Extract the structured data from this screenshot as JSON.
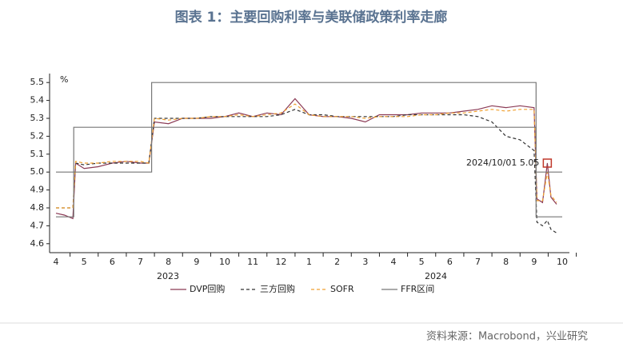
{
  "chart_data": {
    "type": "line",
    "title": "图表 1：主要回购利率与美联储政策利率走廊",
    "y_unit": "%",
    "source": "资料来源：Macrobond，兴业研究",
    "year_labels": [
      "2023",
      "2024"
    ],
    "xlim": [
      0,
      18
    ],
    "ylim": [
      4.55,
      5.55
    ],
    "grid": false,
    "xticks": [
      {
        "value": 0,
        "label": "4"
      },
      {
        "value": 1,
        "label": "5"
      },
      {
        "value": 2,
        "label": "6"
      },
      {
        "value": 3,
        "label": "7"
      },
      {
        "value": 4,
        "label": "8"
      },
      {
        "value": 5,
        "label": "9"
      },
      {
        "value": 6,
        "label": "10"
      },
      {
        "value": 7,
        "label": "11"
      },
      {
        "value": 8,
        "label": "12"
      },
      {
        "value": 9,
        "label": "1"
      },
      {
        "value": 10,
        "label": "2"
      },
      {
        "value": 11,
        "label": "3"
      },
      {
        "value": 12,
        "label": "4"
      },
      {
        "value": 13,
        "label": "5"
      },
      {
        "value": 14,
        "label": "6"
      },
      {
        "value": 15,
        "label": "7"
      },
      {
        "value": 16,
        "label": "8"
      },
      {
        "value": 17,
        "label": "9"
      },
      {
        "value": 18,
        "label": "10"
      }
    ],
    "yticks": [
      4.6,
      4.7,
      4.8,
      4.9,
      {
        "value": 5,
        "label": "5.0"
      },
      5.1,
      5.2,
      5.3,
      5.4,
      5.5
    ],
    "x": [
      0,
      0.3,
      0.6,
      0.7,
      1,
      1.5,
      2,
      2.5,
      3,
      3.3,
      3.5,
      4,
      4.5,
      5,
      5.5,
      6,
      6.5,
      7,
      7.5,
      8,
      8.5,
      9,
      9.5,
      10,
      10.5,
      11,
      11.5,
      12,
      12.5,
      13,
      13.5,
      14,
      14.5,
      15,
      15.5,
      16,
      16.5,
      17,
      17.1,
      17.3,
      17.47,
      17.6,
      17.8
    ],
    "series": [
      {
        "name": "DVP回购",
        "color": "#8b3a55",
        "dash": false,
        "values": [
          4.77,
          4.76,
          4.74,
          5.05,
          5.02,
          5.03,
          5.05,
          5.06,
          5.05,
          5.05,
          5.28,
          5.27,
          5.3,
          5.3,
          5.3,
          5.31,
          5.33,
          5.31,
          5.33,
          5.32,
          5.41,
          5.32,
          5.31,
          5.31,
          5.3,
          5.28,
          5.32,
          5.32,
          5.32,
          5.33,
          5.33,
          5.33,
          5.34,
          5.35,
          5.37,
          5.36,
          5.37,
          5.36,
          4.85,
          4.83,
          5.05,
          4.86,
          4.82
        ]
      },
      {
        "name": "三方回购",
        "color": "#333333",
        "dash": true,
        "values": [
          4.8,
          4.8,
          4.8,
          5.05,
          5.04,
          5.05,
          5.05,
          5.05,
          5.05,
          5.05,
          5.3,
          5.3,
          5.3,
          5.3,
          5.31,
          5.31,
          5.31,
          5.31,
          5.31,
          5.32,
          5.35,
          5.32,
          5.32,
          5.31,
          5.31,
          5.31,
          5.31,
          5.31,
          5.32,
          5.32,
          5.32,
          5.32,
          5.32,
          5.31,
          5.28,
          5.2,
          5.18,
          5.12,
          4.72,
          4.7,
          4.73,
          4.68,
          4.66
        ]
      },
      {
        "name": "SOFR",
        "color": "#f0a030",
        "dash": true,
        "values": [
          4.8,
          4.8,
          4.8,
          5.06,
          5.05,
          5.05,
          5.06,
          5.06,
          5.06,
          5.05,
          5.3,
          5.29,
          5.3,
          5.3,
          5.31,
          5.31,
          5.32,
          5.31,
          5.32,
          5.33,
          5.38,
          5.32,
          5.31,
          5.31,
          5.31,
          5.3,
          5.31,
          5.31,
          5.31,
          5.32,
          5.32,
          5.33,
          5.33,
          5.34,
          5.35,
          5.34,
          5.35,
          5.35,
          4.84,
          4.84,
          5.0,
          4.87,
          4.83
        ]
      },
      {
        "name": "FFR区间",
        "color": "#777777",
        "dash": false,
        "x": [
          0,
          0.63,
          0.63,
          3.4,
          3.4,
          17.07,
          17.07,
          18
        ],
        "values": [
          5.0,
          5.0,
          5.25,
          5.25,
          5.5,
          5.5,
          5.0,
          5.0
        ],
        "lower_values": [
          4.75,
          4.75,
          5.0,
          5.0,
          5.25,
          5.25,
          4.75,
          4.75
        ]
      }
    ],
    "annotation": {
      "text": "2024/10/01  5.05",
      "x": 17.47,
      "y": 5.05,
      "color": "#c0392b"
    }
  }
}
